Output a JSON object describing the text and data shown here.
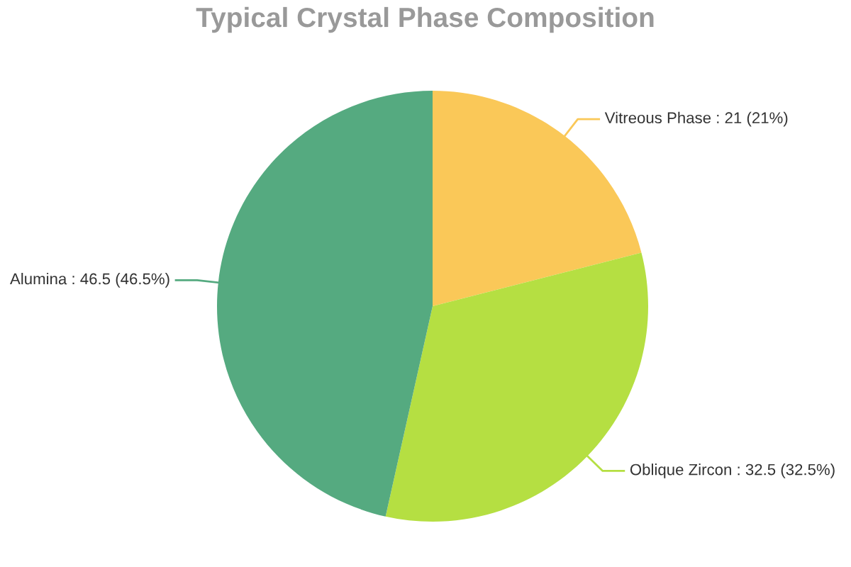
{
  "chart_data": {
    "type": "pie",
    "title": "Typical Crystal Phase Composition",
    "categories": [
      "Vitreous Phase",
      "Oblique Zircon",
      "Alumina"
    ],
    "values": [
      21,
      32.5,
      46.5
    ],
    "colors": [
      "#fac858",
      "#b5df42",
      "#55aa80"
    ],
    "value_labels": [
      "21 (21%)",
      "32.5 (32.5%)",
      "46.5 (46.5%)"
    ],
    "legend": false
  }
}
